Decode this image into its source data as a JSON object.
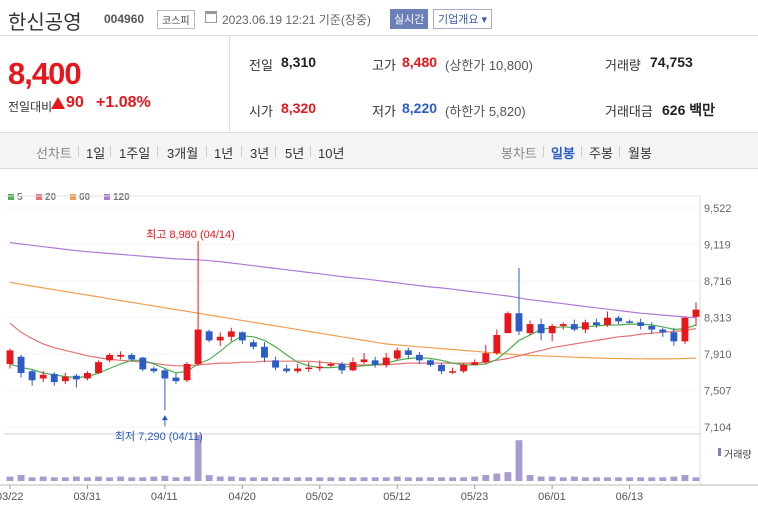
{
  "header": {
    "title": "한신공영",
    "code": "004960",
    "market": "코스피",
    "datetime": "2023.06.19 12:21 기준(장중)",
    "realtime_label": "실시간",
    "overview_label": "기업개요 ▾"
  },
  "price": {
    "current": "8,400",
    "change_label": "전일대비",
    "change": "90",
    "change_pct": "+1.08%",
    "prev_label": "전일",
    "prev": "8,310",
    "open_label": "시가",
    "open": "8,320",
    "high_label": "고가",
    "high": "8,480",
    "upper_limit": "(상한가 10,800)",
    "low_label": "저가",
    "low": "8,220",
    "lower_limit": "(하한가 5,820)",
    "volume_label": "거래량",
    "volume": "74,753",
    "amount_label": "거래대금",
    "amount": "626 백만"
  },
  "periods": {
    "line_label": "선차트",
    "items": [
      "1일",
      "1주일",
      "3개월",
      "1년",
      "3년",
      "5년",
      "10년"
    ],
    "candle_label": "봉차트",
    "candle_items": [
      "일봉",
      "주봉",
      "월봉"
    ],
    "active_candle": "일봉"
  },
  "legend": [
    {
      "label": "5",
      "color": "#4caf50"
    },
    {
      "label": "20",
      "color": "#e57373"
    },
    {
      "label": "60",
      "color": "#f0a050"
    },
    {
      "label": "120",
      "color": "#b07ad8"
    }
  ],
  "volume_label": "거래량",
  "chart_data": {
    "type": "candlestick",
    "y_ticks": [
      9522,
      9119,
      8716,
      8313,
      7910,
      7507,
      7104
    ],
    "ylim": [
      7104,
      9522
    ],
    "x_labels": [
      "03/22",
      "03/31",
      "04/11",
      "04/20",
      "05/02",
      "05/12",
      "05/23",
      "06/01",
      "06/13"
    ],
    "x_label_idx": [
      0,
      7,
      14,
      21,
      28,
      35,
      42,
      49,
      56
    ],
    "high_annotation": "최고 8,980 (04/14)",
    "high_idx": 17,
    "low_annotation": "최저 7,290 (04/11)",
    "low_idx": 14,
    "candles": [
      [
        7800,
        7950,
        7750,
        7970
      ],
      [
        7880,
        7700,
        7650,
        7900
      ],
      [
        7720,
        7620,
        7560,
        7740
      ],
      [
        7640,
        7680,
        7600,
        7720
      ],
      [
        7690,
        7600,
        7560,
        7710
      ],
      [
        7610,
        7660,
        7580,
        7700
      ],
      [
        7670,
        7630,
        7540,
        7690
      ],
      [
        7640,
        7700,
        7620,
        7720
      ],
      [
        7700,
        7820,
        7690,
        7840
      ],
      [
        7840,
        7900,
        7820,
        7920
      ],
      [
        7880,
        7900,
        7850,
        7940
      ],
      [
        7900,
        7850,
        7830,
        7920
      ],
      [
        7870,
        7740,
        7720,
        7880
      ],
      [
        7750,
        7720,
        7700,
        7770
      ],
      [
        7730,
        7640,
        7290,
        7750
      ],
      [
        7650,
        7610,
        7580,
        7700
      ],
      [
        7620,
        7800,
        7600,
        7820
      ],
      [
        7800,
        8180,
        7780,
        8980
      ],
      [
        8160,
        8060,
        8040,
        8180
      ],
      [
        8060,
        8100,
        8000,
        8150
      ],
      [
        8100,
        8160,
        8050,
        8200
      ],
      [
        8150,
        8060,
        8020,
        8160
      ],
      [
        8040,
        7990,
        7960,
        8070
      ],
      [
        7990,
        7870,
        7820,
        8040
      ],
      [
        7840,
        7760,
        7730,
        7880
      ],
      [
        7750,
        7720,
        7700,
        7790
      ],
      [
        7720,
        7750,
        7700,
        7800
      ],
      [
        7760,
        7760,
        7710,
        7820
      ],
      [
        7760,
        7770,
        7720,
        7840
      ],
      [
        7780,
        7800,
        7760,
        7820
      ],
      [
        7800,
        7730,
        7690,
        7820
      ],
      [
        7730,
        7820,
        7720,
        7870
      ],
      [
        7820,
        7850,
        7800,
        7920
      ],
      [
        7840,
        7790,
        7760,
        7880
      ],
      [
        7790,
        7870,
        7760,
        7920
      ],
      [
        7860,
        7950,
        7840,
        7980
      ],
      [
        7950,
        7900,
        7860,
        7980
      ],
      [
        7900,
        7840,
        7800,
        7930
      ],
      [
        7840,
        7790,
        7770,
        7850
      ],
      [
        7790,
        7720,
        7690,
        7810
      ],
      [
        7720,
        7720,
        7690,
        7760
      ],
      [
        7720,
        7790,
        7700,
        7810
      ],
      [
        7790,
        7820,
        7790,
        7850
      ],
      [
        7820,
        7920,
        7800,
        8010
      ],
      [
        7920,
        8120,
        7900,
        8180
      ],
      [
        8140,
        8360,
        8140,
        8380
      ],
      [
        8360,
        8160,
        8120,
        8860
      ],
      [
        8140,
        8240,
        8120,
        8280
      ],
      [
        8240,
        8140,
        8060,
        8300
      ],
      [
        8140,
        8220,
        8050,
        8240
      ],
      [
        8220,
        8240,
        8180,
        8260
      ],
      [
        8240,
        8180,
        8160,
        8290
      ],
      [
        8180,
        8260,
        8140,
        8290
      ],
      [
        8260,
        8230,
        8200,
        8300
      ],
      [
        8230,
        8310,
        8210,
        8380
      ],
      [
        8310,
        8270,
        8240,
        8330
      ],
      [
        8270,
        8260,
        8250,
        8290
      ],
      [
        8260,
        8220,
        8180,
        8300
      ],
      [
        8220,
        8180,
        8130,
        8260
      ],
      [
        8180,
        8150,
        8100,
        8200
      ],
      [
        8150,
        8050,
        8000,
        8200
      ],
      [
        8050,
        8310,
        8020,
        8320
      ],
      [
        8320,
        8400,
        8220,
        8480
      ]
    ],
    "ma5": [
      7800,
      7760,
      7740,
      7700,
      7680,
      7660,
      7650,
      7660,
      7700,
      7750,
      7800,
      7840,
      7840,
      7800,
      7750,
      7700,
      7720,
      7800,
      7850,
      7940,
      8040,
      8110,
      8100,
      8060,
      7990,
      7900,
      7820,
      7780,
      7760,
      7760,
      7770,
      7770,
      7780,
      7790,
      7810,
      7840,
      7860,
      7870,
      7860,
      7840,
      7810,
      7790,
      7790,
      7800,
      7850,
      7950,
      8060,
      8120,
      8180,
      8200,
      8210,
      8200,
      8210,
      8220,
      8230,
      8230,
      8240,
      8240,
      8230,
      8210,
      8180,
      8190,
      8230
    ],
    "ma20": [
      8250,
      8150,
      8080,
      8020,
      7980,
      7950,
      7920,
      7890,
      7870,
      7850,
      7840,
      7830,
      7820,
      7810,
      7790,
      7780,
      7780,
      7790,
      7800,
      7810,
      7810,
      7820,
      7820,
      7830,
      7830,
      7830,
      7830,
      7830,
      7820,
      7810,
      7800,
      7790,
      7790,
      7790,
      7790,
      7800,
      7810,
      7810,
      7810,
      7810,
      7810,
      7810,
      7810,
      7820,
      7840,
      7860,
      7890,
      7920,
      7950,
      7980,
      8000,
      8020,
      8040,
      8060,
      8080,
      8100,
      8110,
      8130,
      8140,
      8150,
      8160,
      8170,
      8190
    ],
    "ma60": [
      8700,
      8680,
      8660,
      8640,
      8620,
      8600,
      8580,
      8560,
      8540,
      8520,
      8500,
      8480,
      8460,
      8440,
      8420,
      8400,
      8380,
      8360,
      8340,
      8320,
      8300,
      8280,
      8260,
      8240,
      8220,
      8200,
      8180,
      8160,
      8140,
      8120,
      8100,
      8080,
      8060,
      8040,
      8020,
      8010,
      8000,
      7990,
      7980,
      7970,
      7960,
      7950,
      7940,
      7930,
      7920,
      7910,
      7900,
      7895,
      7890,
      7885,
      7880,
      7875,
      7870,
      7866,
      7863,
      7860,
      7858,
      7857,
      7856,
      7856,
      7857,
      7860,
      7865
    ],
    "ma120": [
      9140,
      9125,
      9110,
      9095,
      9080,
      9065,
      9050,
      9040,
      9030,
      9020,
      9010,
      9000,
      8990,
      8980,
      8970,
      8960,
      8955,
      8950,
      8940,
      8930,
      8915,
      8900,
      8885,
      8870,
      8855,
      8840,
      8825,
      8810,
      8795,
      8780,
      8765,
      8750,
      8740,
      8725,
      8710,
      8695,
      8680,
      8665,
      8650,
      8640,
      8625,
      8610,
      8595,
      8580,
      8565,
      8550,
      8530,
      8510,
      8495,
      8480,
      8465,
      8450,
      8435,
      8420,
      8405,
      8390,
      8375,
      8360,
      8350,
      8340,
      8330,
      8320,
      8310
    ],
    "volumes": [
      6,
      8,
      5,
      6,
      5,
      5,
      6,
      5,
      6,
      5,
      6,
      5,
      5,
      6,
      7,
      5,
      6,
      62,
      8,
      6,
      6,
      5,
      5,
      5,
      5,
      5,
      5,
      5,
      5,
      5,
      5,
      5,
      5,
      5,
      5,
      6,
      5,
      5,
      5,
      5,
      5,
      5,
      6,
      8,
      10,
      12,
      55,
      8,
      6,
      6,
      5,
      6,
      5,
      5,
      5,
      5,
      5,
      5,
      5,
      5,
      6,
      8,
      5
    ]
  }
}
